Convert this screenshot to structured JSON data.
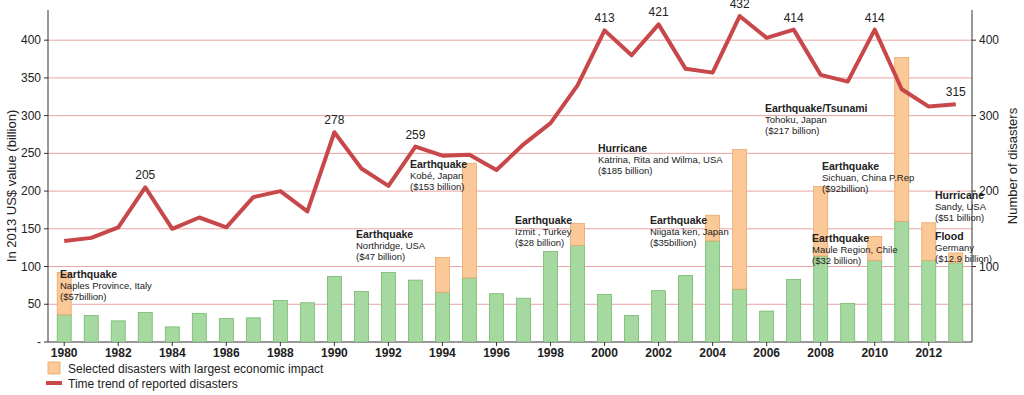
{
  "chart_data": {
    "type": "bar",
    "stacked": true,
    "grid": true,
    "legend": "bottom-left",
    "y_label": "In 2013 US$ value (billion)",
    "y2_label": "Number of disasters",
    "x": [
      1980,
      1981,
      1982,
      1983,
      1984,
      1985,
      1986,
      1987,
      1988,
      1989,
      1990,
      1991,
      1992,
      1993,
      1994,
      1995,
      1996,
      1997,
      1998,
      1999,
      2000,
      2001,
      2002,
      2003,
      2004,
      2005,
      2006,
      2007,
      2008,
      2009,
      2010,
      2011,
      2012,
      2013
    ],
    "xlim": [
      1979.4,
      2013.6
    ],
    "xticks": [
      1980,
      1982,
      1984,
      1986,
      1988,
      1990,
      1992,
      1994,
      1996,
      1998,
      2000,
      2002,
      2004,
      2006,
      2008,
      2010,
      2012
    ],
    "ylim": [
      0,
      440
    ],
    "yticks": [
      {
        "value": 0,
        "label": "-"
      },
      50,
      100,
      150,
      200,
      250,
      300,
      350,
      400
    ],
    "y2lim": [
      0,
      440
    ],
    "y2ticks": [
      100,
      200,
      300,
      400
    ],
    "series": [
      {
        "type": "bar",
        "color": "#a6d9a0",
        "values": [
          36,
          35,
          28,
          39,
          20,
          38,
          31,
          32,
          55,
          52,
          87,
          67,
          92,
          82,
          66,
          85,
          64,
          58,
          120,
          128,
          63,
          35,
          68,
          88,
          134,
          70,
          41,
          83,
          114,
          51,
          108,
          160,
          108,
          105
        ]
      },
      {
        "name": "Selected disasters with largest economic impact",
        "type": "bar",
        "color": "#fbc897",
        "values": [
          56,
          0,
          0,
          0,
          0,
          0,
          0,
          0,
          0,
          0,
          0,
          0,
          0,
          0,
          46,
          152,
          0,
          0,
          0,
          29,
          0,
          0,
          0,
          0,
          34,
          185,
          0,
          0,
          92,
          0,
          32,
          217,
          50,
          13
        ]
      },
      {
        "name": "Time trend of reported disasters",
        "type": "line",
        "axis": "y2",
        "color": "#c8474a",
        "values": [
          134,
          138,
          152,
          205,
          150,
          165,
          152,
          192,
          200,
          173,
          278,
          230,
          207,
          259,
          247,
          248,
          228,
          262,
          290,
          340,
          413,
          380,
          421,
          362,
          357,
          432,
          403,
          414,
          354,
          345,
          414,
          335,
          312,
          315
        ],
        "value_labels": [
          null,
          null,
          null,
          "205",
          null,
          null,
          null,
          null,
          null,
          null,
          "278",
          null,
          null,
          "259",
          null,
          null,
          null,
          null,
          null,
          null,
          "413",
          null,
          "421",
          null,
          null,
          "432",
          null,
          "414",
          null,
          null,
          "414",
          null,
          null,
          "315"
        ]
      }
    ],
    "annotations": [
      {
        "lines": [
          "Earthquake",
          "Naples Province, Italy",
          "($57billion)"
        ]
      },
      {
        "lines": [
          "Earthquake",
          "Northridge, USA",
          "($47 billion)"
        ]
      },
      {
        "lines": [
          "Earthquake",
          "Kobé, Japan",
          "($153 billion)"
        ]
      },
      {
        "lines": [
          "Earthquake",
          "Izmit , Turkey",
          "($28 billion)"
        ]
      },
      {
        "lines": [
          "Hurricane",
          "Katrina, Rita and Wilma, USA",
          "($185 billion)"
        ]
      },
      {
        "lines": [
          "Earthquake",
          "Niigata ken, Japan",
          "($35billion)"
        ]
      },
      {
        "lines": [
          "Earthquake",
          "Sichuan, China P.Rep",
          "($92billion)"
        ]
      },
      {
        "lines": [
          "Earthquake",
          "Maule Region, Chile",
          "($32 billion)"
        ]
      },
      {
        "lines": [
          "Earthquake/Tsunami",
          "Tohoku, Japan",
          "($217 billion)"
        ]
      },
      {
        "lines": [
          "Hurricane",
          "Sandy, USA",
          "($51 billion)"
        ]
      },
      {
        "lines": [
          "Flood",
          "Germany",
          "($12.9 billion)"
        ]
      }
    ]
  }
}
